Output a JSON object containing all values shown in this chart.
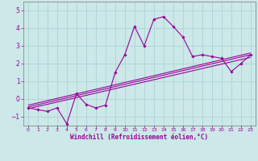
{
  "xlabel": "Windchill (Refroidissement éolien,°C)",
  "background_color": "#cce8e8",
  "line_color": "#990099",
  "grid_color": "#aad4d4",
  "x_data": [
    0,
    1,
    2,
    3,
    4,
    5,
    6,
    7,
    8,
    9,
    10,
    11,
    12,
    13,
    14,
    15,
    16,
    17,
    18,
    19,
    20,
    21,
    22,
    23
  ],
  "y_data": [
    -0.5,
    -0.6,
    -0.7,
    -0.5,
    -1.4,
    0.3,
    -0.3,
    -0.5,
    -0.35,
    1.5,
    2.5,
    4.1,
    3.0,
    4.5,
    4.65,
    4.1,
    3.5,
    2.4,
    2.5,
    2.4,
    2.3,
    1.55,
    2.0,
    2.5
  ],
  "trend1_x": [
    0,
    23
  ],
  "trend1_y": [
    -0.55,
    2.35
  ],
  "trend2_x": [
    0,
    23
  ],
  "trend2_y": [
    -0.45,
    2.5
  ],
  "trend3_x": [
    0,
    23
  ],
  "trend3_y": [
    -0.35,
    2.6
  ],
  "ylim": [
    -1.5,
    5.5
  ],
  "xlim": [
    -0.5,
    23.5
  ],
  "yticks": [
    -1,
    0,
    1,
    2,
    3,
    4,
    5
  ],
  "xticks": [
    0,
    1,
    2,
    3,
    4,
    5,
    6,
    7,
    8,
    9,
    10,
    11,
    12,
    13,
    14,
    15,
    16,
    17,
    18,
    19,
    20,
    21,
    22,
    23
  ],
  "tick_fontsize": 4.5,
  "xlabel_fontsize": 5.5,
  "ytick_fontsize": 5.5
}
